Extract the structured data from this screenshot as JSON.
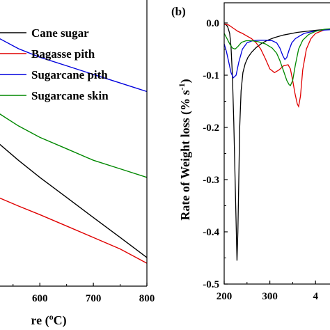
{
  "chart_data": [
    {
      "panel": "",
      "type": "line",
      "xlabel": "re (°C)",
      "ylabel": "",
      "xlim": [
        510,
        800
      ],
      "x_ticks": [
        "600",
        "700",
        "800"
      ],
      "legend": {
        "placement": "top-right",
        "entries": [
          {
            "name": "Cane sugar",
            "color": "#000000"
          },
          {
            "name": "Bagasse pith",
            "color": "#e00000"
          },
          {
            "name": "Sugarcane pith",
            "color": "#0000dd"
          },
          {
            "name": "Sugarcane skin",
            "color": "#008800"
          }
        ]
      },
      "series": [
        {
          "name": "Cane sugar",
          "color": "#000000",
          "x": [
            510,
            560,
            600,
            650,
            700,
            750,
            800
          ],
          "y": [
            0.52,
            0.44,
            0.38,
            0.31,
            0.24,
            0.17,
            0.1
          ]
        },
        {
          "name": "Bagasse pith",
          "color": "#e00000",
          "x": [
            510,
            560,
            600,
            650,
            700,
            750,
            800
          ],
          "y": [
            0.32,
            0.28,
            0.25,
            0.21,
            0.17,
            0.13,
            0.08
          ]
        },
        {
          "name": "Sugarcane pith",
          "color": "#0000dd",
          "x": [
            510,
            560,
            600,
            650,
            700,
            750,
            800
          ],
          "y": [
            0.88,
            0.83,
            0.8,
            0.77,
            0.74,
            0.71,
            0.68
          ]
        },
        {
          "name": "Sugarcane skin",
          "color": "#008800",
          "x": [
            510,
            560,
            600,
            650,
            700,
            750,
            800
          ],
          "y": [
            0.62,
            0.56,
            0.52,
            0.48,
            0.44,
            0.41,
            0.38
          ]
        }
      ]
    },
    {
      "panel": "(b)",
      "type": "line",
      "xlabel": "",
      "ylabel": "Rate of Weight loss (% s",
      "ylabel_sup": "-1",
      "ylabel_close": ")",
      "xlim": [
        200,
        450
      ],
      "ylim": [
        -0.5,
        0.0
      ],
      "x_ticks": [
        "200",
        "300",
        "4"
      ],
      "y_ticks": [
        "0.0",
        "-0.1",
        "-0.2",
        "-0.3",
        "-0.4",
        "-0.5"
      ],
      "series": [
        {
          "name": "Cane sugar",
          "color": "#000000",
          "x": [
            200,
            205,
            208,
            212,
            215,
            218,
            221,
            224,
            226,
            228,
            230,
            232,
            234,
            237,
            241,
            246,
            252,
            260,
            270,
            282,
            295,
            310,
            330,
            360,
            400,
            450
          ],
          "y": [
            -0.002,
            -0.004,
            -0.008,
            -0.02,
            -0.045,
            -0.1,
            -0.19,
            -0.3,
            -0.38,
            -0.455,
            -0.4,
            -0.3,
            -0.2,
            -0.13,
            -0.095,
            -0.078,
            -0.066,
            -0.056,
            -0.047,
            -0.039,
            -0.033,
            -0.028,
            -0.023,
            -0.018,
            -0.014,
            -0.01
          ]
        },
        {
          "name": "Bagasse pith",
          "color": "#e00000",
          "x": [
            200,
            210,
            220,
            230,
            240,
            250,
            260,
            270,
            280,
            290,
            300,
            310,
            320,
            330,
            340,
            345,
            350,
            355,
            360,
            363,
            367,
            372,
            380,
            390,
            400,
            420,
            450
          ],
          "y": [
            -0.002,
            -0.004,
            -0.01,
            -0.016,
            -0.02,
            -0.025,
            -0.03,
            -0.038,
            -0.05,
            -0.068,
            -0.088,
            -0.095,
            -0.09,
            -0.082,
            -0.08,
            -0.088,
            -0.11,
            -0.135,
            -0.155,
            -0.16,
            -0.14,
            -0.09,
            -0.05,
            -0.03,
            -0.02,
            -0.013,
            -0.01
          ]
        },
        {
          "name": "Sugarcane pith",
          "color": "#0000dd",
          "x": [
            200,
            205,
            210,
            215,
            220,
            226,
            232,
            240,
            250,
            262,
            275,
            290,
            305,
            315,
            322,
            328,
            333,
            337,
            342,
            348,
            356,
            365,
            375,
            390,
            410,
            450
          ],
          "y": [
            -0.04,
            -0.055,
            -0.075,
            -0.095,
            -0.105,
            -0.1,
            -0.075,
            -0.05,
            -0.038,
            -0.034,
            -0.033,
            -0.033,
            -0.034,
            -0.038,
            -0.048,
            -0.062,
            -0.07,
            -0.066,
            -0.052,
            -0.038,
            -0.03,
            -0.025,
            -0.02,
            -0.017,
            -0.014,
            -0.012
          ]
        },
        {
          "name": "Sugarcane skin",
          "color": "#008800",
          "x": [
            200,
            205,
            212,
            218,
            224,
            230,
            238,
            248,
            260,
            275,
            290,
            305,
            315,
            322,
            330,
            337,
            342,
            345,
            350,
            356,
            363,
            372,
            385,
            400,
            420,
            450
          ],
          "y": [
            -0.02,
            -0.028,
            -0.04,
            -0.048,
            -0.05,
            -0.045,
            -0.037,
            -0.034,
            -0.034,
            -0.036,
            -0.04,
            -0.048,
            -0.058,
            -0.072,
            -0.092,
            -0.11,
            -0.118,
            -0.12,
            -0.11,
            -0.08,
            -0.05,
            -0.033,
            -0.022,
            -0.016,
            -0.012,
            -0.01
          ]
        }
      ]
    }
  ]
}
